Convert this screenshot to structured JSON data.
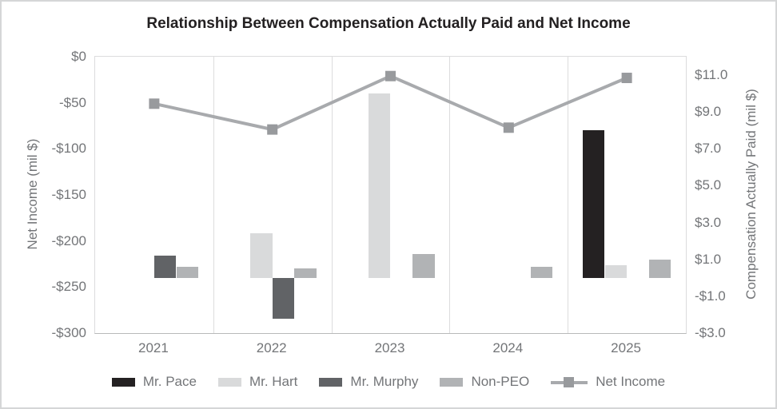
{
  "title": "Relationship Between Compensation Actually Paid and Net Income",
  "chart_data": {
    "type": "bar",
    "subtype": "combo-bar-line-dual-axis",
    "title": "Relationship Between Compensation Actually Paid and Net Income",
    "categories": [
      "2021",
      "2022",
      "2023",
      "2024",
      "2025"
    ],
    "bar_series": [
      {
        "name": "Mr. Pace",
        "color": "#242122",
        "axis": "right",
        "values": [
          null,
          null,
          null,
          null,
          8.0
        ]
      },
      {
        "name": "Mr. Hart",
        "color": "#d9dadb",
        "axis": "right",
        "values": [
          null,
          2.4,
          10.0,
          null,
          0.7
        ]
      },
      {
        "name": "Mr. Murphy",
        "color": "#616366",
        "axis": "right",
        "values": [
          1.2,
          -2.2,
          null,
          null,
          null
        ]
      },
      {
        "name": "Non-PEO",
        "color": "#b1b3b5",
        "axis": "right",
        "values": [
          0.6,
          0.5,
          1.3,
          0.6,
          1.0
        ]
      }
    ],
    "line_series": {
      "name": "Net Income",
      "color": "#a8aaad",
      "marker_color": "#989a9d",
      "axis": "left",
      "values": [
        -51,
        -79,
        -21,
        -77,
        -23
      ]
    },
    "left_axis": {
      "label": "Net Income (mil $)",
      "ticks": [
        "$0",
        "-$50",
        "-$100",
        "-$150",
        "-$200",
        "-$250",
        "-$300"
      ],
      "tick_values": [
        0,
        -50,
        -100,
        -150,
        -200,
        -250,
        -300
      ],
      "range": [
        0,
        -300
      ]
    },
    "right_axis": {
      "label": "Compensation Actually Paid (mil $)",
      "ticks": [
        "$11.0",
        "$9.0",
        "$7.0",
        "$5.0",
        "$3.0",
        "$1.0",
        "-$1.0",
        "-$3.0"
      ],
      "tick_values": [
        11,
        9,
        7,
        5,
        3,
        1,
        -1,
        -3
      ],
      "range": [
        12,
        -3
      ]
    },
    "legend": [
      "Mr. Pace",
      "Mr. Hart",
      "Mr. Murphy",
      "Non-PEO",
      "Net Income"
    ],
    "grid": "vertical-separators-only",
    "legend_position": "bottom"
  }
}
